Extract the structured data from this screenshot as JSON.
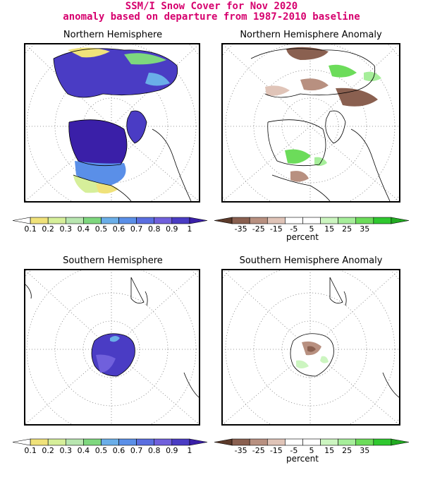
{
  "title_line1": "SSM/I Snow Cover for Nov 2020",
  "title_line2": "anomaly based on departure from 1987-2010 baseline",
  "panels": {
    "nh": "Northern Hemisphere",
    "nh_anom": "Northern Hemisphere Anomaly",
    "sh": "Southern Hemisphere",
    "sh_anom": "Southern Hemisphere Anomaly"
  },
  "cover_scale": {
    "colors": [
      "#ffffff",
      "#f0e27a",
      "#d6ef9a",
      "#b8e6b0",
      "#7ed77e",
      "#6aaee8",
      "#5a8fe8",
      "#5a6ee0",
      "#7060dc",
      "#4a3cc4",
      "#3a1fa8"
    ],
    "labels": [
      "0.1",
      "0.2",
      "0.3",
      "0.4",
      "0.5",
      "0.6",
      "0.7",
      "0.8",
      "0.9",
      "1"
    ]
  },
  "anomaly_scale": {
    "colors": [
      "#5c3a2a",
      "#8a6050",
      "#b89080",
      "#e0c4b8",
      "#ffffff",
      "#ffffff",
      "#ccf5c0",
      "#a6ee9a",
      "#6cdc5a",
      "#2fc82f",
      "#22aa22"
    ],
    "labels": [
      "-35",
      "-25",
      "-15",
      "-5",
      "5",
      "15",
      "25",
      "35"
    ],
    "unit": "percent"
  }
}
